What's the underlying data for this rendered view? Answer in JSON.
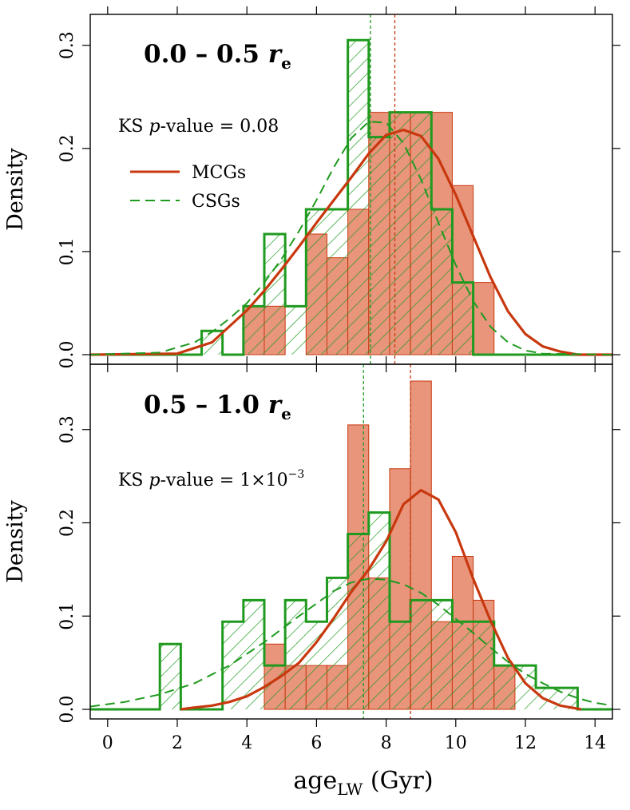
{
  "figure": {
    "xlabel_main": "age",
    "xlabel_sub": "LW",
    "xlabel_unit": " (Gyr)"
  },
  "colors": {
    "mcg_fill": "#e8957c",
    "mcg_line": "#c8380e",
    "csg": "#1f9a1f",
    "axis": "#000000"
  },
  "chart_data": [
    {
      "type": "histogram",
      "panel_label": "0.0 – 0.5",
      "panel_label_r": "r",
      "panel_label_sub": "e",
      "ks_prefix": "KS ",
      "ks_p": "p",
      "ks_suffix": "-value = 0.08",
      "ks_sup": "",
      "ylabel": "Density",
      "xlim": [
        -0.5,
        14.5
      ],
      "ylim": [
        0,
        0.33
      ],
      "xticks": [
        0,
        2,
        4,
        6,
        8,
        10,
        12,
        14
      ],
      "xtick_labels": [],
      "yticks": [
        0.0,
        0.1,
        0.2,
        0.3
      ],
      "ytick_labels": [
        "0.0",
        "0.1",
        "0.2",
        "0.3"
      ],
      "legend": {
        "placement": "upper-left",
        "items": [
          {
            "label": "MCGs",
            "style": "solid",
            "series": "MCGs"
          },
          {
            "label": "CSGs",
            "style": "dashed",
            "series": "CSGs"
          }
        ]
      },
      "series": [
        {
          "name": "MCGs",
          "kind": "histogram",
          "bins": [
            [
              3.9,
              4.5,
              0.047
            ],
            [
              4.5,
              5.1,
              0.047
            ],
            [
              5.1,
              5.7,
              0.0
            ],
            [
              5.7,
              6.3,
              0.117
            ],
            [
              6.3,
              6.9,
              0.094
            ],
            [
              6.9,
              7.5,
              0.141
            ],
            [
              7.5,
              8.1,
              0.235
            ],
            [
              8.1,
              8.7,
              0.235
            ],
            [
              8.7,
              9.3,
              0.235
            ],
            [
              9.3,
              9.9,
              0.235
            ],
            [
              9.9,
              10.5,
              0.164
            ],
            [
              10.5,
              11.1,
              0.07
            ]
          ]
        },
        {
          "name": "CSGs",
          "kind": "histogram",
          "bins": [
            [
              2.7,
              3.3,
              0.023
            ],
            [
              3.3,
              3.9,
              0.0
            ],
            [
              3.9,
              4.5,
              0.047
            ],
            [
              4.5,
              5.1,
              0.117
            ],
            [
              5.1,
              5.7,
              0.047
            ],
            [
              5.7,
              6.3,
              0.141
            ],
            [
              6.3,
              6.9,
              0.141
            ],
            [
              6.9,
              7.5,
              0.305
            ],
            [
              7.5,
              8.1,
              0.211
            ],
            [
              8.1,
              8.7,
              0.235
            ],
            [
              8.7,
              9.3,
              0.235
            ],
            [
              9.3,
              9.9,
              0.141
            ],
            [
              9.9,
              10.5,
              0.07
            ],
            [
              10.5,
              11.1,
              0.0
            ]
          ]
        },
        {
          "name": "MCGs",
          "kind": "density",
          "x": [
            -0.5,
            2.0,
            3.0,
            4.0,
            4.5,
            5.0,
            5.5,
            6.0,
            6.5,
            7.0,
            7.5,
            8.0,
            8.5,
            9.0,
            9.5,
            10.0,
            10.5,
            11.0,
            11.5,
            12.0,
            12.5,
            13.0,
            13.5,
            14.5
          ],
          "y": [
            0.0,
            0.001,
            0.012,
            0.043,
            0.062,
            0.083,
            0.105,
            0.128,
            0.15,
            0.172,
            0.195,
            0.213,
            0.218,
            0.212,
            0.19,
            0.155,
            0.115,
            0.075,
            0.042,
            0.02,
            0.008,
            0.003,
            0.0,
            0.0
          ]
        },
        {
          "name": "CSGs",
          "kind": "density",
          "x": [
            -0.5,
            1.5,
            2.5,
            3.0,
            3.5,
            4.0,
            4.5,
            5.0,
            5.5,
            6.0,
            6.5,
            7.0,
            7.5,
            8.0,
            8.5,
            9.0,
            9.5,
            10.0,
            10.5,
            11.0,
            11.5,
            12.0,
            12.5,
            14.5
          ],
          "y": [
            0.0,
            0.002,
            0.012,
            0.022,
            0.035,
            0.05,
            0.07,
            0.093,
            0.12,
            0.15,
            0.182,
            0.21,
            0.226,
            0.225,
            0.205,
            0.17,
            0.128,
            0.087,
            0.052,
            0.027,
            0.012,
            0.004,
            0.001,
            0.0
          ]
        }
      ],
      "vlines": [
        {
          "series": "CSGs",
          "x": 7.55
        },
        {
          "series": "MCGs",
          "x": 8.25
        }
      ]
    },
    {
      "type": "histogram",
      "panel_label": "0.5 – 1.0",
      "panel_label_r": "r",
      "panel_label_sub": "e",
      "ks_prefix": "KS ",
      "ks_p": "p",
      "ks_suffix": "-value = 1×10",
      "ks_sup": "−3",
      "ylabel": "Density",
      "xlim": [
        -0.5,
        14.5
      ],
      "ylim": [
        0,
        0.37
      ],
      "xticks": [
        0,
        2,
        4,
        6,
        8,
        10,
        12,
        14
      ],
      "xtick_labels": [
        "0",
        "2",
        "4",
        "6",
        "8",
        "10",
        "12",
        "14"
      ],
      "yticks": [
        0.0,
        0.1,
        0.2,
        0.3
      ],
      "ytick_labels": [
        "0.0",
        "0.1",
        "0.2",
        "0.3"
      ],
      "series": [
        {
          "name": "MCGs",
          "kind": "histogram",
          "bins": [
            [
              4.5,
              5.1,
              0.07
            ],
            [
              5.1,
              5.7,
              0.047
            ],
            [
              5.7,
              6.3,
              0.047
            ],
            [
              6.3,
              6.9,
              0.047
            ],
            [
              6.9,
              7.5,
              0.305
            ],
            [
              7.5,
              8.1,
              0.141
            ],
            [
              8.1,
              8.7,
              0.258
            ],
            [
              8.7,
              9.3,
              0.352
            ],
            [
              9.3,
              9.9,
              0.094
            ],
            [
              9.9,
              10.5,
              0.164
            ],
            [
              10.5,
              11.1,
              0.117
            ],
            [
              11.1,
              11.7,
              0.047
            ]
          ]
        },
        {
          "name": "CSGs",
          "kind": "histogram",
          "bins": [
            [
              1.5,
              2.1,
              0.07
            ],
            [
              2.1,
              2.7,
              0.0
            ],
            [
              2.7,
              3.3,
              0.0
            ],
            [
              3.3,
              3.9,
              0.094
            ],
            [
              3.9,
              4.5,
              0.117
            ],
            [
              4.5,
              5.1,
              0.047
            ],
            [
              5.1,
              5.7,
              0.117
            ],
            [
              5.7,
              6.3,
              0.094
            ],
            [
              6.3,
              6.9,
              0.141
            ],
            [
              6.9,
              7.5,
              0.188
            ],
            [
              7.5,
              8.1,
              0.211
            ],
            [
              8.1,
              8.7,
              0.094
            ],
            [
              8.7,
              9.3,
              0.117
            ],
            [
              9.3,
              9.9,
              0.117
            ],
            [
              9.9,
              10.5,
              0.094
            ],
            [
              10.5,
              11.1,
              0.094
            ],
            [
              11.1,
              11.7,
              0.047
            ],
            [
              11.7,
              12.3,
              0.047
            ],
            [
              12.3,
              12.9,
              0.023
            ],
            [
              12.9,
              13.5,
              0.023
            ]
          ]
        },
        {
          "name": "MCGs",
          "kind": "density",
          "x": [
            2.1,
            2.5,
            3.0,
            3.5,
            4.0,
            4.5,
            5.0,
            5.5,
            6.0,
            6.5,
            7.0,
            7.5,
            8.0,
            8.5,
            9.0,
            9.5,
            10.0,
            10.5,
            11.0,
            11.5,
            12.0,
            12.5,
            13.0,
            13.6
          ],
          "y": [
            0.0,
            0.002,
            0.004,
            0.008,
            0.014,
            0.024,
            0.036,
            0.05,
            0.072,
            0.098,
            0.126,
            0.15,
            0.18,
            0.22,
            0.235,
            0.225,
            0.19,
            0.14,
            0.095,
            0.055,
            0.028,
            0.012,
            0.004,
            0.0
          ]
        },
        {
          "name": "CSGs",
          "kind": "density",
          "x": [
            -0.5,
            0.5,
            1.5,
            2.5,
            3.5,
            4.5,
            5.5,
            6.5,
            7.0,
            7.5,
            8.0,
            8.5,
            9.0,
            9.5,
            10.0,
            10.5,
            11.0,
            11.5,
            12.0,
            12.5,
            13.0,
            13.5,
            14.0,
            14.5
          ],
          "y": [
            0.003,
            0.008,
            0.016,
            0.028,
            0.047,
            0.072,
            0.1,
            0.127,
            0.136,
            0.14,
            0.139,
            0.134,
            0.125,
            0.112,
            0.097,
            0.082,
            0.066,
            0.051,
            0.038,
            0.028,
            0.019,
            0.012,
            0.007,
            0.004
          ]
        }
      ],
      "vlines": [
        {
          "series": "CSGs",
          "x": 7.35
        },
        {
          "series": "MCGs",
          "x": 8.7
        }
      ]
    }
  ]
}
